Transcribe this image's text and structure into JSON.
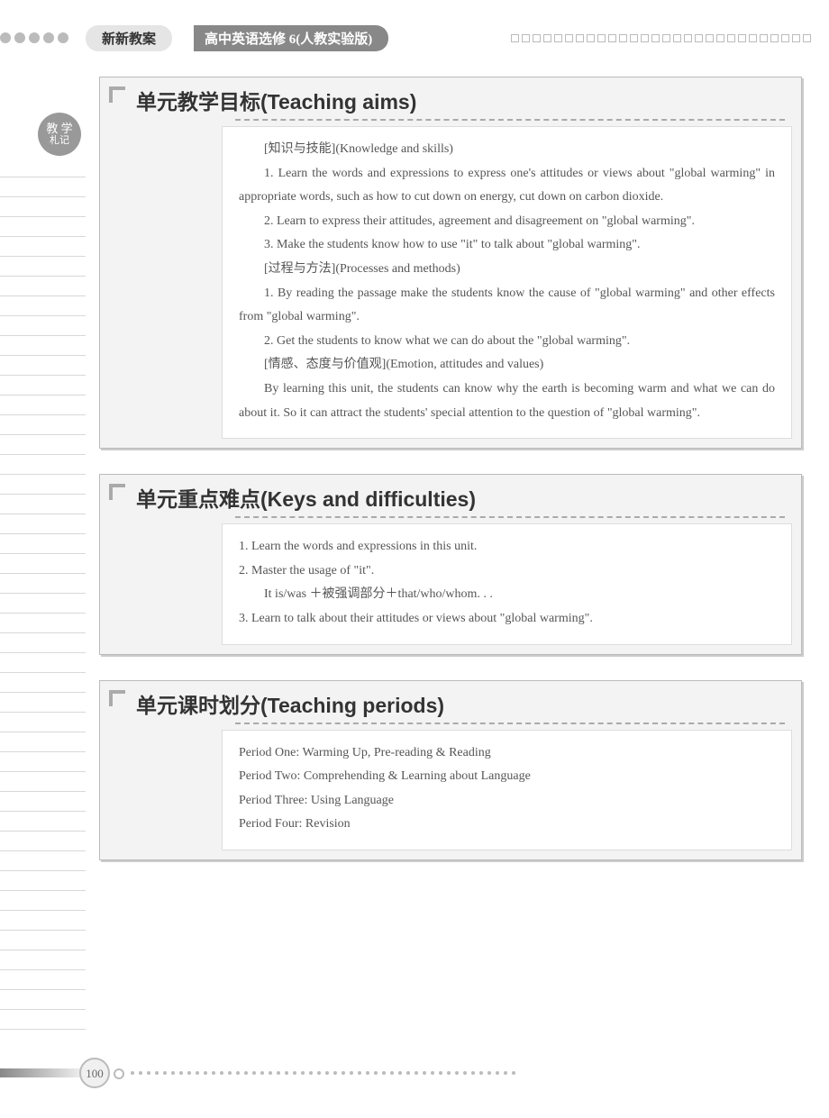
{
  "header": {
    "title": "新新教案",
    "subtitle": "高中英语选修 6(人教实验版)"
  },
  "side_badge": {
    "line1": "教 学",
    "line2": "札记"
  },
  "sections": [
    {
      "title": "单元教学目标(Teaching aims)",
      "body": [
        {
          "t": "sub",
          "text": "[知识与技能](Knowledge and skills)"
        },
        {
          "t": "p",
          "text": "1. Learn the words and expressions to express one's attitudes or views about \"global warming\" in appropriate words, such as how to cut down on energy, cut down on carbon dioxide."
        },
        {
          "t": "p",
          "text": "2. Learn to express their attitudes, agreement and disagreement on \"global warming\"."
        },
        {
          "t": "p",
          "text": "3. Make the students know how to use \"it\" to talk about \"global warming\"."
        },
        {
          "t": "sub",
          "text": "[过程与方法](Processes and methods)"
        },
        {
          "t": "p",
          "text": "1. By reading the passage make the students know the cause of \"global warming\" and other effects from \"global warming\"."
        },
        {
          "t": "p",
          "text": "2. Get the students to know what we can do about the \"global warming\"."
        },
        {
          "t": "sub",
          "text": "[情感、态度与价值观](Emotion, attitudes and values)"
        },
        {
          "t": "p",
          "text": "By learning this unit, the students can know why the earth is becoming warm and what we can do about it. So it can attract the students' special attention to the question of \"global warming\"."
        }
      ]
    },
    {
      "title": "单元重点难点(Keys and difficulties)",
      "body": [
        {
          "t": "line",
          "text": "1. Learn the words and expressions in this unit."
        },
        {
          "t": "line",
          "text": "2. Master the usage of \"it\"."
        },
        {
          "t": "line2",
          "text": "   It is/was ＋被强调部分＋that/who/whom. . ."
        },
        {
          "t": "line",
          "text": "3. Learn to talk about their attitudes or views about \"global warming\"."
        }
      ]
    },
    {
      "title": "单元课时划分(Teaching periods)",
      "body": [
        {
          "t": "line",
          "text": "Period One: Warming Up, Pre-reading & Reading"
        },
        {
          "t": "line",
          "text": "Period Two: Comprehending & Learning about Language"
        },
        {
          "t": "line",
          "text": "Period Three: Using Language"
        },
        {
          "t": "line",
          "text": "Period Four: Revision"
        }
      ]
    }
  ],
  "page_number": "100"
}
